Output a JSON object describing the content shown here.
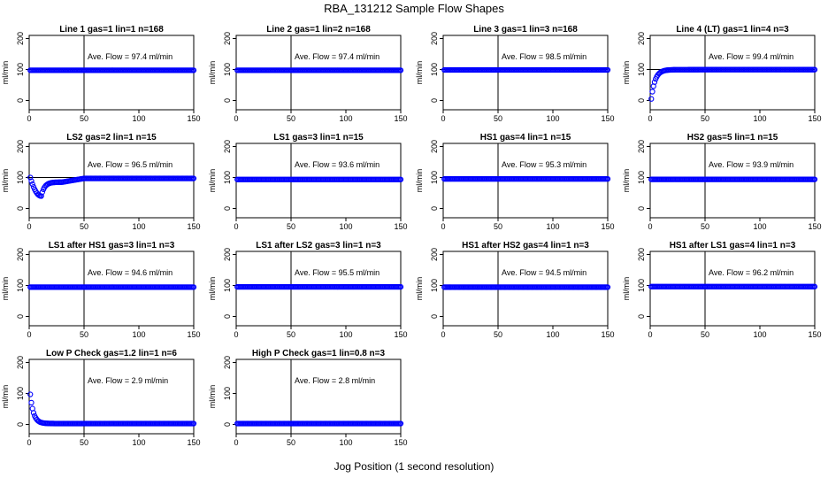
{
  "figure": {
    "title": "RBA_131212  Sample Flow Shapes",
    "xlabel": "Jog Position (1 second resolution)"
  },
  "chart_data": [
    {
      "type": "scatter",
      "title": "Line 1 gas=1 lin=1 n=168",
      "ylabel": "ml/min",
      "xlim": [
        0,
        150
      ],
      "ylim": [
        -30,
        210
      ],
      "xticks": [
        0,
        50,
        100,
        150
      ],
      "yticks": [
        0,
        100,
        200
      ],
      "vline": 50,
      "hline": 100,
      "annotation": "Ave. Flow = 97.4  ml/min",
      "color": "#0000ff",
      "shape": {
        "kind": "flat",
        "level": 97.4
      }
    },
    {
      "type": "scatter",
      "title": "Line 2 gas=1 lin=2 n=168",
      "ylabel": "ml/min",
      "xlim": [
        0,
        150
      ],
      "ylim": [
        -30,
        210
      ],
      "xticks": [
        0,
        50,
        100,
        150
      ],
      "yticks": [
        0,
        100,
        200
      ],
      "vline": 50,
      "hline": 100,
      "annotation": "Ave. Flow = 97.4  ml/min",
      "color": "#0000ff",
      "shape": {
        "kind": "flat",
        "level": 97.4
      }
    },
    {
      "type": "scatter",
      "title": "Line 3 gas=1 lin=3 n=168",
      "ylabel": "ml/min",
      "xlim": [
        0,
        150
      ],
      "ylim": [
        -30,
        210
      ],
      "xticks": [
        0,
        50,
        100,
        150
      ],
      "yticks": [
        0,
        100,
        200
      ],
      "vline": 50,
      "hline": 100,
      "annotation": "Ave. Flow = 98.5  ml/min",
      "color": "#0000ff",
      "shape": {
        "kind": "flat",
        "level": 98.5
      }
    },
    {
      "type": "scatter",
      "title": "Line 4 (LT) gas=1 lin=4 n=3",
      "ylabel": "ml/min",
      "xlim": [
        0,
        150
      ],
      "ylim": [
        -30,
        210
      ],
      "xticks": [
        0,
        50,
        100,
        150
      ],
      "yticks": [
        0,
        100,
        200
      ],
      "vline": 50,
      "hline": 100,
      "annotation": "Ave. Flow = 99.4  ml/min",
      "color": "#0000ff",
      "shape": {
        "kind": "rise",
        "start": 5,
        "level": 99.4,
        "tau": 3.5
      }
    },
    {
      "type": "scatter",
      "title": "LS2 gas=2 lin=1 n=15",
      "ylabel": "ml/min",
      "xlim": [
        0,
        150
      ],
      "ylim": [
        -30,
        210
      ],
      "xticks": [
        0,
        50,
        100,
        150
      ],
      "yticks": [
        0,
        100,
        200
      ],
      "vline": 50,
      "hline": 100,
      "annotation": "Ave. Flow = 96.5  ml/min",
      "color": "#0000ff",
      "shape": {
        "kind": "dip",
        "start": 100,
        "min": 40,
        "minAt": 11,
        "plateau": 85,
        "level": 97
      }
    },
    {
      "type": "scatter",
      "title": "LS1 gas=3 lin=1 n=15",
      "ylabel": "ml/min",
      "xlim": [
        0,
        150
      ],
      "ylim": [
        -30,
        210
      ],
      "xticks": [
        0,
        50,
        100,
        150
      ],
      "yticks": [
        0,
        100,
        200
      ],
      "vline": 50,
      "hline": 100,
      "annotation": "Ave. Flow = 93.6  ml/min",
      "color": "#0000ff",
      "shape": {
        "kind": "flat",
        "level": 93.6
      }
    },
    {
      "type": "scatter",
      "title": "HS1 gas=4 lin=1 n=15",
      "ylabel": "ml/min",
      "xlim": [
        0,
        150
      ],
      "ylim": [
        -30,
        210
      ],
      "xticks": [
        0,
        50,
        100,
        150
      ],
      "yticks": [
        0,
        100,
        200
      ],
      "vline": 50,
      "hline": 100,
      "annotation": "Ave. Flow = 95.3  ml/min",
      "color": "#0000ff",
      "shape": {
        "kind": "flat",
        "level": 95.3
      }
    },
    {
      "type": "scatter",
      "title": "HS2 gas=5 lin=1 n=15",
      "ylabel": "ml/min",
      "xlim": [
        0,
        150
      ],
      "ylim": [
        -30,
        210
      ],
      "xticks": [
        0,
        50,
        100,
        150
      ],
      "yticks": [
        0,
        100,
        200
      ],
      "vline": 50,
      "hline": 100,
      "annotation": "Ave. Flow = 93.9  ml/min",
      "color": "#0000ff",
      "shape": {
        "kind": "flat",
        "level": 93.9
      }
    },
    {
      "type": "scatter",
      "title": "LS1 after HS1 gas=3 lin=1 n=3",
      "ylabel": "ml/min",
      "xlim": [
        0,
        150
      ],
      "ylim": [
        -30,
        210
      ],
      "xticks": [
        0,
        50,
        100,
        150
      ],
      "yticks": [
        0,
        100,
        200
      ],
      "vline": 50,
      "hline": 100,
      "annotation": "Ave. Flow = 94.6  ml/min",
      "color": "#0000ff",
      "shape": {
        "kind": "flat",
        "level": 94.6
      }
    },
    {
      "type": "scatter",
      "title": "LS1 after LS2 gas=3 lin=1 n=3",
      "ylabel": "ml/min",
      "xlim": [
        0,
        150
      ],
      "ylim": [
        -30,
        210
      ],
      "xticks": [
        0,
        50,
        100,
        150
      ],
      "yticks": [
        0,
        100,
        200
      ],
      "vline": 50,
      "hline": 100,
      "annotation": "Ave. Flow = 95.5  ml/min",
      "color": "#0000ff",
      "shape": {
        "kind": "flat",
        "level": 95.5
      }
    },
    {
      "type": "scatter",
      "title": "HS1 after HS2 gas=4 lin=1 n=3",
      "ylabel": "ml/min",
      "xlim": [
        0,
        150
      ],
      "ylim": [
        -30,
        210
      ],
      "xticks": [
        0,
        50,
        100,
        150
      ],
      "yticks": [
        0,
        100,
        200
      ],
      "vline": 50,
      "hline": 100,
      "annotation": "Ave. Flow = 94.5  ml/min",
      "color": "#0000ff",
      "shape": {
        "kind": "flat",
        "level": 94.5
      }
    },
    {
      "type": "scatter",
      "title": "HS1 after LS1 gas=4 lin=1 n=3",
      "ylabel": "ml/min",
      "xlim": [
        0,
        150
      ],
      "ylim": [
        -30,
        210
      ],
      "xticks": [
        0,
        50,
        100,
        150
      ],
      "yticks": [
        0,
        100,
        200
      ],
      "vline": 50,
      "hline": 100,
      "annotation": "Ave. Flow = 96.2  ml/min",
      "color": "#0000ff",
      "shape": {
        "kind": "flat",
        "level": 96.2
      }
    },
    {
      "type": "scatter",
      "title": "Low P Check gas=1.2 lin=1 n=6",
      "ylabel": "ml/min",
      "xlim": [
        0,
        150
      ],
      "ylim": [
        -30,
        210
      ],
      "xticks": [
        0,
        50,
        100,
        150
      ],
      "yticks": [
        0,
        100,
        200
      ],
      "vline": 50,
      "hline": null,
      "annotation": "Ave. Flow = 2.9  ml/min",
      "color": "#0000ff",
      "shape": {
        "kind": "decay",
        "start": 97,
        "level": 2.9,
        "tau": 3
      }
    },
    {
      "type": "scatter",
      "title": "High P Check gas=1 lin=0.8 n=3",
      "ylabel": "ml/min",
      "xlim": [
        0,
        150
      ],
      "ylim": [
        -30,
        210
      ],
      "xticks": [
        0,
        50,
        100,
        150
      ],
      "yticks": [
        0,
        100,
        200
      ],
      "vline": 50,
      "hline": null,
      "annotation": "Ave. Flow = 2.8  ml/min",
      "color": "#0000ff",
      "shape": {
        "kind": "flat",
        "level": 2.8
      }
    }
  ]
}
